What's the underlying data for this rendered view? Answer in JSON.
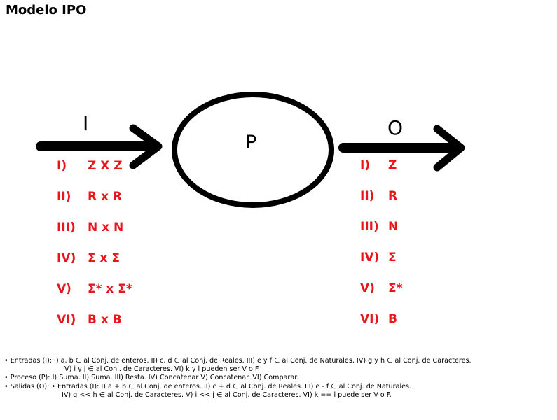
{
  "title": "Modelo IPO",
  "diagram": {
    "input_label": "I",
    "process_label": "P",
    "output_label": "O",
    "stroke_color": "#000000",
    "list_color": "#e8161a"
  },
  "inputs": [
    {
      "num": "I)",
      "value": "Z X Z"
    },
    {
      "num": "II)",
      "value": "R x R"
    },
    {
      "num": "III)",
      "value": "N x N"
    },
    {
      "num": "IV)",
      "value": "Σ x Σ"
    },
    {
      "num": "V)",
      "value": "Σ* x Σ*"
    },
    {
      "num": "VI)",
      "value": "B x B"
    }
  ],
  "outputs": [
    {
      "num": "I)",
      "value": "Z"
    },
    {
      "num": "II)",
      "value": "R"
    },
    {
      "num": "III)",
      "value": "N"
    },
    {
      "num": "IV)",
      "value": "Σ"
    },
    {
      "num": "V)",
      "value": "Σ*"
    },
    {
      "num": "VI)",
      "value": "B"
    }
  ],
  "notes": {
    "entradas_1": "• Entradas (I): I) a, b ∈ al Conj. de enteros. II) c, d ∈ al Conj. de Reales. III) e y f ∈ al Conj. de Naturales. IV) g y h ∈ al Conj. de Caracteres.",
    "entradas_2": "V) i y j ∈ al Conj. de Caracteres. VI) k y l pueden ser V o F.",
    "proceso": "• Proceso (P): I) Suma. II) Suma. III) Resta. IV) Concatenar V) Concatenar. VI) Comparar.",
    "salidas_1": "• Salidas (O): • Entradas (I): I) a + b ∈ al Conj. de enteros. II) c + d ∈ al Conj. de Reales. III) e - f ∈ al Conj. de Naturales.",
    "salidas_2": "IV) g << h ∈ al Conj. de Caracteres. V) i << j ∈ al Conj. de Caracteres. VI) k == l puede ser V o F."
  }
}
